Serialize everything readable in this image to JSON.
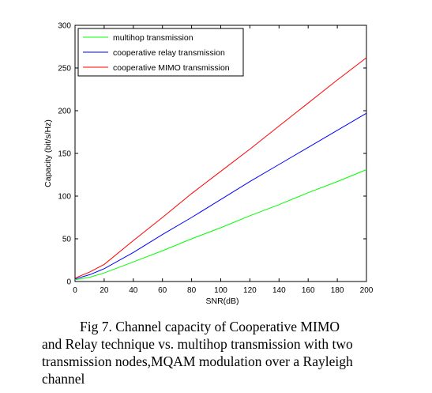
{
  "chart_data": {
    "type": "line",
    "title": "",
    "xlabel": "SNR(dB)",
    "ylabel": "Capacity (bit/s/Hz)",
    "xlim": [
      0,
      200
    ],
    "ylim": [
      0,
      300
    ],
    "xticks": [
      0,
      20,
      40,
      60,
      80,
      100,
      120,
      140,
      160,
      180,
      200
    ],
    "yticks": [
      0,
      50,
      100,
      150,
      200,
      250,
      300
    ],
    "grid": false,
    "legend_position": "top-left",
    "x": [
      0,
      10,
      20,
      40,
      60,
      80,
      100,
      120,
      140,
      160,
      180,
      200
    ],
    "series": [
      {
        "name": "multihop transmission",
        "color": "#00ff00",
        "values": [
          2,
          5,
          10,
          23,
          36,
          50,
          63,
          77,
          90,
          104,
          117,
          131
        ]
      },
      {
        "name": "cooperative relay transmission",
        "color": "#0000ff",
        "values": [
          3,
          8,
          15,
          34,
          55,
          75,
          96,
          117,
          137,
          157,
          177,
          197
        ]
      },
      {
        "name": "cooperative MIMO transmission",
        "color": "#ff0000",
        "values": [
          4,
          11,
          20,
          48,
          75,
          103,
          129,
          155,
          182,
          209,
          236,
          262
        ]
      }
    ]
  },
  "caption": {
    "line1": "Fig 7. Channel capacity of Cooperative MIMO",
    "line2": "and Relay technique vs.  multihop transmission with two",
    "line3": "transmission nodes,MQAM modulation over a Rayleigh",
    "line4": "channel"
  }
}
